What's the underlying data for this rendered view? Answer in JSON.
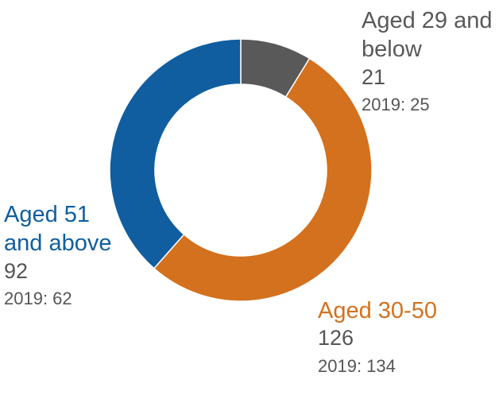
{
  "chart_data": {
    "type": "pie",
    "title": "",
    "donut": true,
    "slices": [
      {
        "name": "Aged 29 and below",
        "value": 21,
        "prior_label": "2019: 25",
        "color": "#595959"
      },
      {
        "name": "Aged 30-50",
        "value": 126,
        "prior_label": "2019: 134",
        "color": "#D4711E"
      },
      {
        "name": "Aged 51 and above",
        "value": 92,
        "prior_label": "2019: 62",
        "color": "#105EA0"
      }
    ],
    "start_angle_deg": 0,
    "direction": "clockwise"
  }
}
